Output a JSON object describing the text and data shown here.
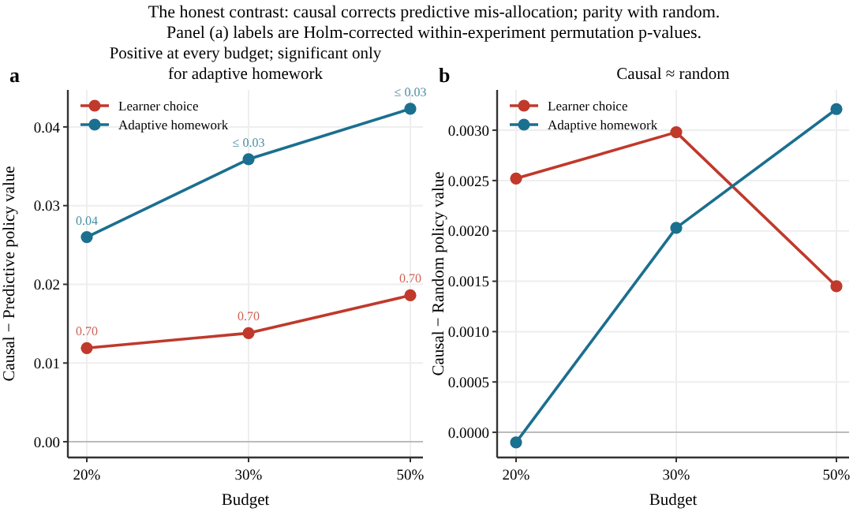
{
  "chart_data": [
    {
      "type": "line",
      "title": "Positive at every budget; significant only\nfor adaptive homework",
      "xlabel": "Budget",
      "ylabel": "Causal − Predictive policy value",
      "annotations": [
        "a",
        "The honest contrast: causal corrects predictive mis-allocation; parity with random.",
        "Panel (a) labels are Holm-corrected within-experiment permutation p-values.",
        {
          "text": "0.70",
          "x": "20%",
          "y": 0.0119
        },
        {
          "text": "0.70",
          "x": "30%",
          "y": 0.0138
        },
        {
          "text": "0.70",
          "x": "50%",
          "y": 0.0186
        },
        {
          "text": "0.04",
          "x": "20%",
          "y": 0.026
        },
        {
          "text": "≤ 0.03",
          "x": "30%",
          "y": 0.0359
        },
        {
          "text": "≤ 0.03",
          "x": "50%",
          "y": 0.0423
        }
      ],
      "categories": [
        "20%",
        "30%",
        "50%"
      ],
      "ylim": [
        -0.002,
        0.0447
      ],
      "yticks": [
        {
          "value": 0,
          "label": "0.00"
        },
        {
          "value": 0.01,
          "label": "0.01"
        },
        {
          "value": 0.02,
          "label": "0.02"
        },
        {
          "value": 0.03,
          "label": "0.03"
        },
        {
          "value": 0.04,
          "label": "0.04"
        }
      ],
      "grid": true,
      "legend": "top left",
      "marker": "circle",
      "ref_lines": [
        {
          "axis": "y",
          "value": 0,
          "color": "#bbbbbb"
        }
      ],
      "series": [
        {
          "name": "Learner choice",
          "color": "#c0392b",
          "values": [
            0.0119,
            0.0138,
            0.0186
          ]
        },
        {
          "name": "Adaptive homework",
          "color": "#1b6f8f",
          "values": [
            0.026,
            0.0359,
            0.0423
          ]
        }
      ]
    },
    {
      "type": "line",
      "title": "Causal ≈ random",
      "xlabel": "Budget",
      "ylabel": "Causal − Random policy value",
      "annotations": [
        "b"
      ],
      "categories": [
        "20%",
        "30%",
        "50%"
      ],
      "ylim": [
        -0.00025,
        0.0034
      ],
      "yticks": [
        {
          "value": 0,
          "label": "0.0000"
        },
        {
          "value": 0.0005,
          "label": "0.0005"
        },
        {
          "value": 0.001,
          "label": "0.0010"
        },
        {
          "value": 0.0015,
          "label": "0.0015"
        },
        {
          "value": 0.002,
          "label": "0.0020"
        },
        {
          "value": 0.0025,
          "label": "0.0025"
        },
        {
          "value": 0.003,
          "label": "0.0030"
        }
      ],
      "grid": true,
      "legend": "top left",
      "marker": "circle",
      "ref_lines": [
        {
          "axis": "y",
          "value": 0,
          "color": "#bbbbbb"
        }
      ],
      "series": [
        {
          "name": "Learner choice",
          "color": "#c0392b",
          "values": [
            0.00252,
            0.00298,
            0.00145
          ]
        },
        {
          "name": "Adaptive homework",
          "color": "#1b6f8f",
          "values": [
            -0.0001,
            0.00203,
            0.00321
          ]
        }
      ]
    }
  ]
}
